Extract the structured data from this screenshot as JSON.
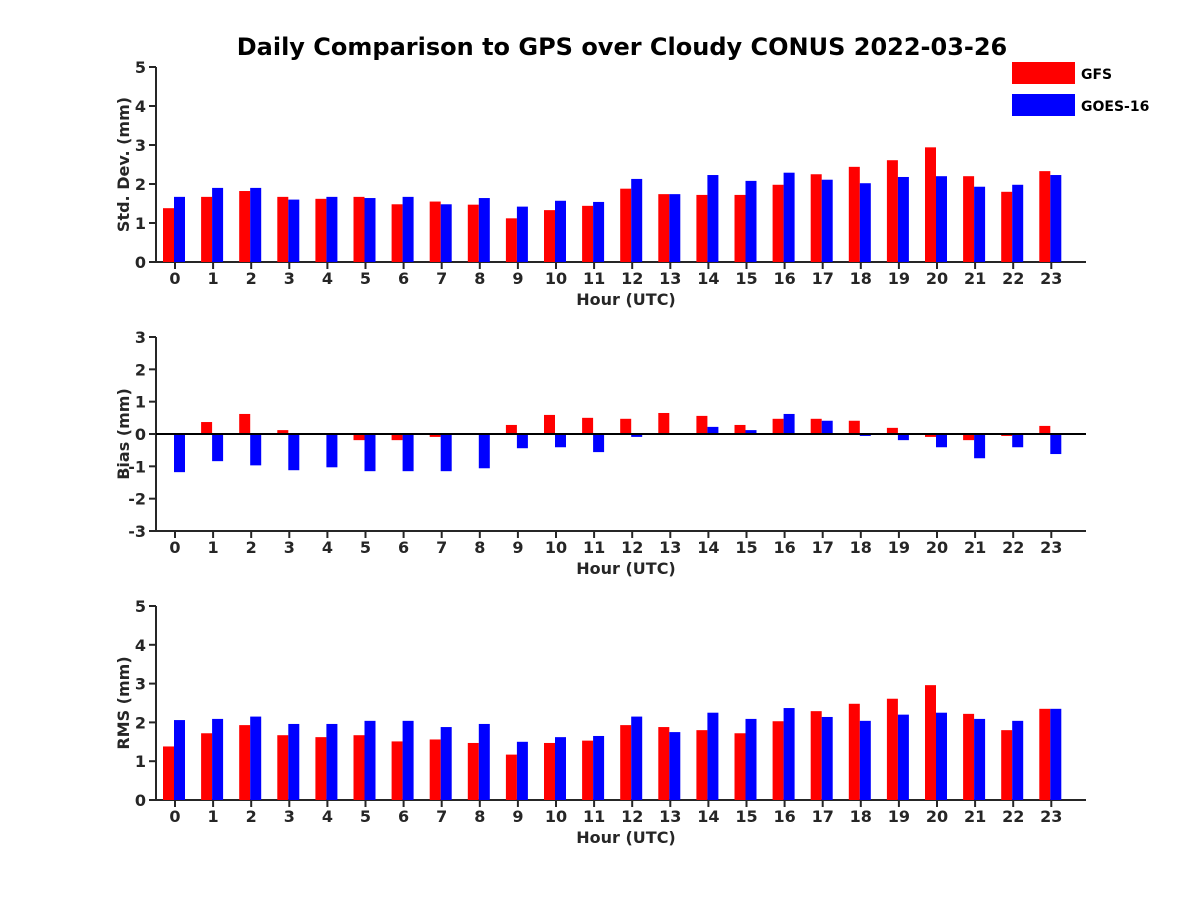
{
  "title": "Daily Comparison to GPS over Cloudy CONUS 2022-03-26",
  "colors": {
    "GFS": "#ff0000",
    "GOES-16": "#0000ff"
  },
  "chart_data": [
    {
      "type": "bar",
      "categories": [
        "0",
        "1",
        "2",
        "3",
        "4",
        "5",
        "6",
        "7",
        "8",
        "9",
        "10",
        "11",
        "12",
        "13",
        "14",
        "15",
        "16",
        "17",
        "18",
        "19",
        "20",
        "21",
        "22",
        "23"
      ],
      "xlabel": "Hour (UTC)",
      "ylabel": "Std. Dev. (mm)",
      "ylim": [
        0,
        5
      ],
      "yticks": [
        "0",
        "1",
        "2",
        "3",
        "4",
        "5"
      ],
      "series": [
        {
          "name": "GFS",
          "values": [
            1.38,
            1.67,
            1.82,
            1.67,
            1.62,
            1.67,
            1.48,
            1.55,
            1.47,
            1.12,
            1.33,
            1.44,
            1.88,
            1.74,
            1.72,
            1.72,
            1.98,
            2.25,
            2.44,
            2.61,
            2.94,
            2.2,
            1.8,
            2.33
          ]
        },
        {
          "name": "GOES-16",
          "values": [
            1.67,
            1.9,
            1.9,
            1.6,
            1.67,
            1.64,
            1.67,
            1.48,
            1.64,
            1.42,
            1.57,
            1.54,
            2.13,
            1.74,
            2.23,
            2.08,
            2.29,
            2.11,
            2.02,
            2.18,
            2.2,
            1.93,
            1.98,
            2.23
          ]
        }
      ],
      "legend": {
        "position": "top-right",
        "entries": [
          "GFS",
          "GOES-16"
        ]
      }
    },
    {
      "type": "bar",
      "categories": [
        "0",
        "1",
        "2",
        "3",
        "4",
        "5",
        "6",
        "7",
        "8",
        "9",
        "10",
        "11",
        "12",
        "13",
        "14",
        "15",
        "16",
        "17",
        "18",
        "19",
        "20",
        "21",
        "22",
        "23"
      ],
      "xlabel": "Hour (UTC)",
      "ylabel": "Bias (mm)",
      "ylim": [
        -3,
        3
      ],
      "yticks": [
        "-3",
        "-2",
        "-1",
        "0",
        "1",
        "2",
        "3"
      ],
      "series": [
        {
          "name": "GFS",
          "values": [
            0.0,
            0.37,
            0.62,
            0.12,
            0.02,
            -0.19,
            -0.19,
            -0.09,
            0.02,
            0.28,
            0.59,
            0.5,
            0.47,
            0.65,
            0.56,
            0.28,
            0.47,
            0.47,
            0.41,
            0.19,
            -0.09,
            -0.19,
            -0.06,
            0.25
          ]
        },
        {
          "name": "GOES-16",
          "values": [
            -1.18,
            -0.84,
            -0.97,
            -1.12,
            -1.03,
            -1.15,
            -1.15,
            -1.15,
            -1.06,
            -0.44,
            -0.41,
            -0.56,
            -0.09,
            0.0,
            0.22,
            0.12,
            0.62,
            0.41,
            -0.06,
            -0.19,
            -0.41,
            -0.75,
            -0.41,
            -0.62
          ]
        }
      ]
    },
    {
      "type": "bar",
      "categories": [
        "0",
        "1",
        "2",
        "3",
        "4",
        "5",
        "6",
        "7",
        "8",
        "9",
        "10",
        "11",
        "12",
        "13",
        "14",
        "15",
        "16",
        "17",
        "18",
        "19",
        "20",
        "21",
        "22",
        "23"
      ],
      "xlabel": "Hour (UTC)",
      "ylabel": "RMS (mm)",
      "ylim": [
        0,
        5
      ],
      "yticks": [
        "0",
        "1",
        "2",
        "3",
        "4",
        "5"
      ],
      "series": [
        {
          "name": "GFS",
          "values": [
            1.38,
            1.72,
            1.93,
            1.67,
            1.62,
            1.67,
            1.51,
            1.56,
            1.47,
            1.17,
            1.47,
            1.53,
            1.93,
            1.88,
            1.8,
            1.72,
            2.03,
            2.29,
            2.48,
            2.61,
            2.96,
            2.22,
            1.8,
            2.35
          ]
        },
        {
          "name": "GOES-16",
          "values": [
            2.06,
            2.09,
            2.15,
            1.96,
            1.96,
            2.04,
            2.04,
            1.88,
            1.96,
            1.5,
            1.62,
            1.65,
            2.15,
            1.75,
            2.25,
            2.09,
            2.37,
            2.14,
            2.04,
            2.2,
            2.25,
            2.09,
            2.04,
            2.35
          ]
        }
      ]
    }
  ]
}
